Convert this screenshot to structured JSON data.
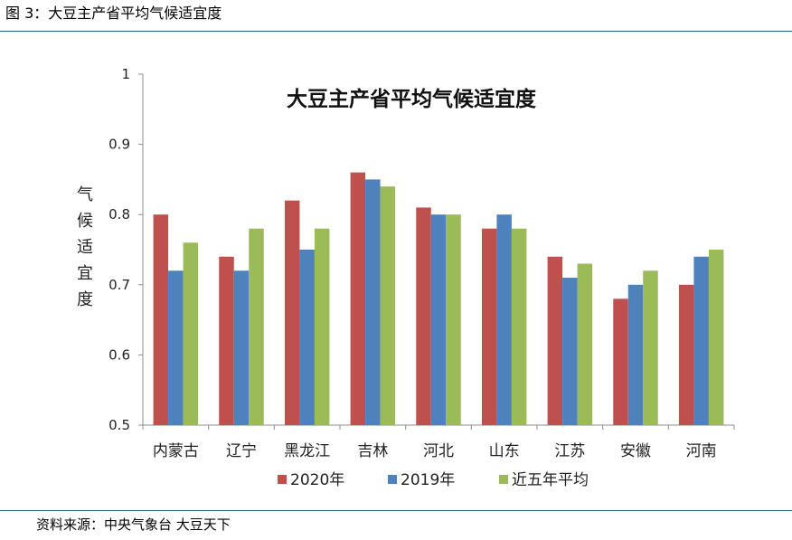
{
  "figure": {
    "caption": "图 3：大豆主产省平均气候适宜度",
    "source": "资料来源：中央气象台  大豆天下"
  },
  "chart_data": {
    "type": "bar",
    "title": "大豆主产省平均气候适宜度",
    "xlabel": "",
    "ylabel": "气候适宜度",
    "categories": [
      "内蒙古",
      "辽宁",
      "黑龙江",
      "吉林",
      "河北",
      "山东",
      "江苏",
      "安徽",
      "河南"
    ],
    "series": [
      {
        "name": "2020年",
        "color": "#c0504d",
        "values": [
          0.8,
          0.74,
          0.82,
          0.86,
          0.81,
          0.78,
          0.74,
          0.68,
          0.7
        ]
      },
      {
        "name": "2019年",
        "color": "#4f81bd",
        "values": [
          0.72,
          0.72,
          0.75,
          0.85,
          0.8,
          0.8,
          0.71,
          0.7,
          0.74
        ]
      },
      {
        "name": "近五年平均",
        "color": "#9bbb59",
        "values": [
          0.76,
          0.78,
          0.78,
          0.84,
          0.8,
          0.78,
          0.73,
          0.72,
          0.75
        ]
      }
    ],
    "ylim": [
      0.5,
      1
    ],
    "yticks": [
      "0.5",
      "0.6",
      "0.7",
      "0.8",
      "0.9",
      "1"
    ],
    "grid": false,
    "legend_position": "bottom"
  }
}
